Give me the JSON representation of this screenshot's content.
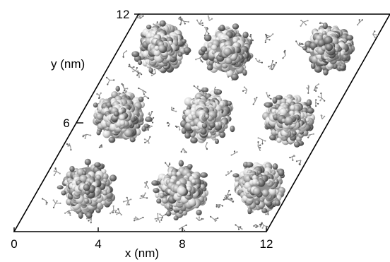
{
  "figure": {
    "x_axis_label": "x (nm)",
    "y_axis_label": "y (nm)",
    "x_ticks": [
      "0",
      "4",
      "8",
      "12"
    ],
    "y_ticks": [
      "6",
      "12"
    ]
  },
  "colors": {
    "frame": "#000000",
    "cluster_dark": "#6b6b6b",
    "cluster_mid": "#9a9a9a",
    "cluster_light": "#e2e2e2",
    "solvent": "#8c8c8c"
  }
}
